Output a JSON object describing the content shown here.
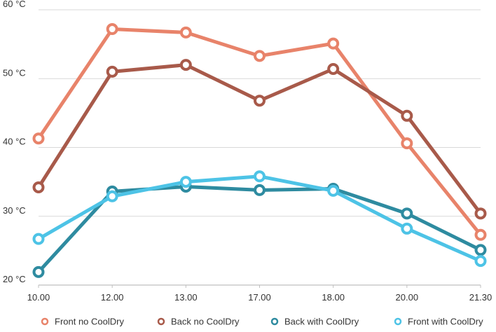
{
  "chart_data": {
    "type": "line",
    "categories": [
      "10.00",
      "12.00",
      "13.00",
      "17.00",
      "18.00",
      "20.00",
      "21.30"
    ],
    "ylim": [
      20,
      60
    ],
    "yticks": [
      20,
      30,
      40,
      50,
      60
    ],
    "ytick_labels": [
      "20 °C",
      "30 °C",
      "40 °C",
      "50 °C",
      "60 °C"
    ],
    "grid": true,
    "legend_position": "bottom",
    "series": [
      {
        "name": "Front no CoolDry",
        "color": "#E8836A",
        "values": [
          41.3,
          57.2,
          56.7,
          53.3,
          55.1,
          40.6,
          27.3
        ]
      },
      {
        "name": "Back no CoolDry",
        "color": "#A85A4A",
        "values": [
          34.2,
          51.0,
          52.0,
          46.8,
          51.4,
          44.6,
          30.4
        ]
      },
      {
        "name": "Back with CoolDry",
        "color": "#2E8BA0",
        "values": [
          21.9,
          33.6,
          34.3,
          33.8,
          34.0,
          30.4,
          25.1
        ]
      },
      {
        "name": "Front with CoolDry",
        "color": "#4DC3E6",
        "values": [
          26.7,
          32.9,
          35.0,
          35.8,
          33.7,
          28.2,
          23.5
        ]
      }
    ]
  }
}
